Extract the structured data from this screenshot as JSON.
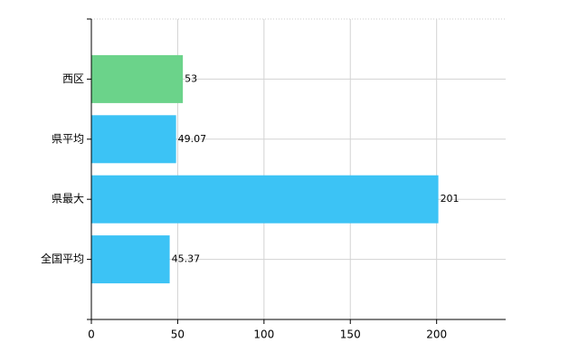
{
  "chart_data": {
    "type": "bar",
    "orientation": "horizontal",
    "categories": [
      "西区",
      "県平均",
      "県最大",
      "全国平均"
    ],
    "values": [
      53,
      49.07,
      201,
      45.37
    ],
    "colors": [
      "#6bd38a",
      "#3cc3f5",
      "#3cc3f5",
      "#3cc3f5"
    ],
    "xlim": [
      0,
      240
    ],
    "xticks": [
      0,
      50,
      100,
      150,
      200
    ],
    "grid": true
  }
}
